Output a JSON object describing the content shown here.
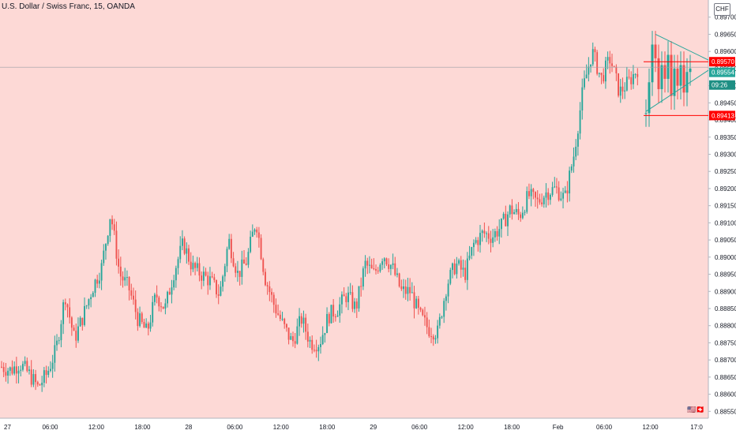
{
  "header": {
    "symbol_title": "U.S. Dollar / Swiss Franc, 15, OANDA",
    "currency": "CHF"
  },
  "colors": {
    "background": "#fdd9d6",
    "up": "#26a69a",
    "down": "#ef5350",
    "axis_text": "#131722",
    "level_red": "#ff0000",
    "pattern_line": "#26a69a",
    "current_tag": "#26a69a"
  },
  "price_tags": {
    "resistance": "0.89570",
    "current": "0.89554",
    "countdown": "09:26",
    "support": "0.89413"
  },
  "chart_data": {
    "type": "candlestick",
    "title": "U.S. Dollar / Swiss Franc, 15, OANDA",
    "ylim": [
      0.8853,
      0.8975
    ],
    "y_ticks": [
      "0.89700",
      "0.89650",
      "0.89600",
      "0.89550",
      "0.89500",
      "0.89450",
      "0.89400",
      "0.89350",
      "0.89300",
      "0.89250",
      "0.89200",
      "0.89150",
      "0.89100",
      "0.89050",
      "0.89000",
      "0.88950",
      "0.88900",
      "0.88850",
      "0.88800",
      "0.88750",
      "0.88700",
      "0.88650",
      "0.88600",
      "0.88550"
    ],
    "x_ticks": [
      "27",
      "06:00",
      "12:00",
      "18:00",
      "28",
      "06:00",
      "12:00",
      "18:00",
      "29",
      "06:00",
      "12:00",
      "18:00",
      "Feb",
      "06:00",
      "12:00",
      "17:0"
    ],
    "close_path": [
      0.8868,
      0.8867,
      0.8869,
      0.8866,
      0.8862,
      0.8866,
      0.8873,
      0.8889,
      0.8876,
      0.8883,
      0.8891,
      0.8897,
      0.8913,
      0.8895,
      0.8891,
      0.8882,
      0.8878,
      0.8889,
      0.8885,
      0.8896,
      0.8904,
      0.8897,
      0.8895,
      0.8893,
      0.8889,
      0.8905,
      0.8895,
      0.8899,
      0.8911,
      0.8894,
      0.8886,
      0.888,
      0.8875,
      0.8882,
      0.8875,
      0.8875,
      0.8883,
      0.8885,
      0.8889,
      0.8885,
      0.8898,
      0.8895,
      0.8901,
      0.8897,
      0.889,
      0.889,
      0.8883,
      0.8879,
      0.8878,
      0.8892,
      0.8898,
      0.8895,
      0.8904,
      0.8907,
      0.8906,
      0.8909,
      0.8914,
      0.8912,
      0.8918,
      0.8916,
      0.8919,
      0.892,
      0.8917,
      0.893,
      0.8949,
      0.896,
      0.8952,
      0.8958,
      0.8948,
      0.8951,
      0.8955
    ],
    "levels": [
      {
        "label": "0.89570",
        "value": 0.8957
      },
      {
        "label": "0.89413",
        "value": 0.89413
      }
    ],
    "current_price": 0.89554,
    "symmetric_triangle": {
      "upper": [
        0.8965,
        0.89575
      ],
      "lower": [
        0.89425,
        0.89545
      ]
    },
    "grid": false
  }
}
